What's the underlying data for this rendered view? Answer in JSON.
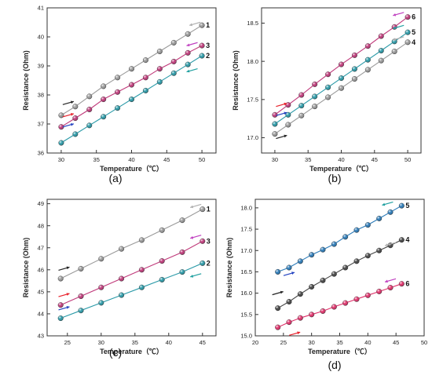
{
  "chart_data": [
    {
      "type": "line",
      "panel": "(a)",
      "xlabel": "Temperature（℃）",
      "ylabel": "Resistance (Ohm)",
      "xlim": [
        28,
        52
      ],
      "ylim": [
        36,
        41
      ],
      "xticks": [
        30,
        35,
        40,
        45,
        50
      ],
      "yticks": [
        36,
        37,
        38,
        39,
        40,
        41
      ],
      "series": [
        {
          "label": "1",
          "color": "#9a9a9a",
          "x": [
            30,
            32,
            34,
            36,
            38,
            40,
            42,
            44,
            46,
            48,
            50
          ],
          "y": [
            37.3,
            37.6,
            37.95,
            38.3,
            38.6,
            38.9,
            39.2,
            39.5,
            39.8,
            40.1,
            40.4
          ],
          "arrows": [
            {
              "x": 31,
              "y": 37.72,
              "dir": "up",
              "color": "#222"
            },
            {
              "x": 49,
              "y": 40.45,
              "dir": "down",
              "color": "#b0b0b0"
            }
          ]
        },
        {
          "label": "3",
          "color": "#c0397a",
          "x": [
            30,
            32,
            34,
            36,
            38,
            40,
            42,
            44,
            46,
            48,
            50
          ],
          "y": [
            36.9,
            37.2,
            37.5,
            37.85,
            38.1,
            38.35,
            38.6,
            38.9,
            39.15,
            39.45,
            39.7
          ],
          "arrows": [
            {
              "x": 31,
              "y": 37.3,
              "dir": "up",
              "color": "#e8202a"
            },
            {
              "x": 48.6,
              "y": 39.75,
              "dir": "down",
              "color": "#c040c0"
            }
          ]
        },
        {
          "label": "2",
          "color": "#2a9aa8",
          "x": [
            30,
            32,
            34,
            36,
            38,
            40,
            42,
            44,
            46,
            48,
            50
          ],
          "y": [
            36.35,
            36.65,
            36.95,
            37.25,
            37.55,
            37.85,
            38.15,
            38.45,
            38.75,
            39.05,
            39.35
          ],
          "arrows": [
            {
              "x": 31,
              "y": 36.95,
              "dir": "up",
              "color": "#2040c0"
            },
            {
              "x": 48.6,
              "y": 38.85,
              "dir": "down",
              "color": "#20a0a0"
            }
          ]
        }
      ]
    },
    {
      "type": "line",
      "panel": "(b)",
      "xlabel": "Temperature（℃）",
      "ylabel": "Resistance (Ohm)",
      "xlim": [
        28,
        52
      ],
      "ylim": [
        16.8,
        18.7
      ],
      "xticks": [
        30,
        35,
        40,
        45,
        50
      ],
      "yticks": [
        17.0,
        17.5,
        18.0,
        18.5
      ],
      "series": [
        {
          "label": "6",
          "color": "#c0397a",
          "x": [
            30,
            32,
            34,
            36,
            38,
            40,
            42,
            44,
            46,
            48,
            50
          ],
          "y": [
            17.3,
            17.43,
            17.56,
            17.7,
            17.83,
            17.96,
            18.08,
            18.2,
            18.33,
            18.45,
            18.58
          ],
          "arrows": [
            {
              "x": 31,
              "y": 17.43,
              "dir": "up",
              "color": "#e8202a"
            },
            {
              "x": 48.6,
              "y": 18.62,
              "dir": "down",
              "color": "#c040c0"
            }
          ]
        },
        {
          "label": "5",
          "color": "#2a9aa8",
          "x": [
            30,
            32,
            34,
            36,
            38,
            40,
            42,
            44,
            46,
            48,
            50
          ],
          "y": [
            17.18,
            17.3,
            17.42,
            17.54,
            17.66,
            17.78,
            17.9,
            18.02,
            18.14,
            18.26,
            18.38
          ],
          "arrows": [
            {
              "x": 31,
              "y": 17.31,
              "dir": "up",
              "color": "#2040c0"
            },
            {
              "x": 48.6,
              "y": 18.45,
              "dir": "down",
              "color": "#20a0a0"
            }
          ]
        },
        {
          "label": "4",
          "color": "#9a9a9a",
          "x": [
            30,
            32,
            34,
            36,
            38,
            40,
            42,
            44,
            46,
            48,
            50
          ],
          "y": [
            17.05,
            17.17,
            17.29,
            17.41,
            17.53,
            17.65,
            17.77,
            17.89,
            18.01,
            18.13,
            18.25
          ],
          "arrows": [
            {
              "x": 31,
              "y": 17.01,
              "dir": "up",
              "color": "#222"
            },
            {
              "x": 48.6,
              "y": 18.3,
              "dir": "down",
              "color": "#b0b0b0"
            }
          ]
        }
      ]
    },
    {
      "type": "line",
      "panel": "(c)",
      "xlabel": "Temperature（℃）",
      "ylabel": "Resistance (Ohm)",
      "xlim": [
        22,
        47
      ],
      "ylim": [
        43,
        49.2
      ],
      "xticks": [
        25,
        30,
        35,
        40,
        45
      ],
      "yticks": [
        43,
        44,
        45,
        46,
        47,
        48,
        49
      ],
      "series": [
        {
          "label": "1",
          "color": "#9a9a9a",
          "x": [
            24,
            27,
            30,
            33,
            36,
            39,
            42,
            45
          ],
          "y": [
            45.6,
            46.05,
            46.5,
            46.95,
            47.35,
            47.8,
            48.25,
            48.75
          ],
          "arrows": [
            {
              "x": 24.5,
              "y": 46.05,
              "dir": "up",
              "color": "#222"
            },
            {
              "x": 44,
              "y": 48.9,
              "dir": "down",
              "color": "#b0b0b0"
            }
          ]
        },
        {
          "label": "3",
          "color": "#c0397a",
          "x": [
            24,
            27,
            30,
            33,
            36,
            39,
            42,
            45
          ],
          "y": [
            44.4,
            44.8,
            45.2,
            45.6,
            46.0,
            46.4,
            46.8,
            47.3
          ],
          "arrows": [
            {
              "x": 24.5,
              "y": 44.85,
              "dir": "up",
              "color": "#e8202a"
            },
            {
              "x": 44,
              "y": 47.5,
              "dir": "down",
              "color": "#c040c0"
            }
          ]
        },
        {
          "label": "2",
          "color": "#2a9aa8",
          "x": [
            24,
            27,
            30,
            33,
            36,
            39,
            42,
            45
          ],
          "y": [
            43.8,
            44.15,
            44.5,
            44.85,
            45.2,
            45.55,
            45.9,
            46.3
          ],
          "arrows": [
            {
              "x": 24.5,
              "y": 44.25,
              "dir": "up",
              "color": "#2040c0"
            },
            {
              "x": 44,
              "y": 45.75,
              "dir": "down",
              "color": "#20a0a0"
            }
          ]
        }
      ]
    },
    {
      "type": "line",
      "panel": "(d)",
      "xlabel": "Temperature（℃）",
      "ylabel": "Resistance (Ohm)",
      "xlim": [
        20,
        50
      ],
      "ylim": [
        15.0,
        18.2
      ],
      "xticks": [
        20,
        25,
        30,
        35,
        40,
        45,
        50
      ],
      "yticks": [
        15.0,
        15.5,
        16.0,
        16.5,
        17.0,
        17.5,
        18.0
      ],
      "series": [
        {
          "label": "5",
          "color": "#2a7ab8",
          "x": [
            24,
            26,
            28,
            30,
            32,
            34,
            36,
            38,
            40,
            42,
            44,
            46
          ],
          "y": [
            16.5,
            16.6,
            16.75,
            16.9,
            17.02,
            17.15,
            17.32,
            17.48,
            17.6,
            17.75,
            17.9,
            18.05
          ],
          "arrows": [
            {
              "x": 26,
              "y": 16.45,
              "dir": "up",
              "color": "#2040c0"
            },
            {
              "x": 43.5,
              "y": 18.1,
              "dir": "down",
              "color": "#20a0a0"
            }
          ]
        },
        {
          "label": "4",
          "color": "#444444",
          "x": [
            24,
            26,
            28,
            30,
            32,
            34,
            36,
            38,
            40,
            42,
            44,
            46
          ],
          "y": [
            15.65,
            15.8,
            15.98,
            16.15,
            16.3,
            16.45,
            16.6,
            16.75,
            16.88,
            17.0,
            17.12,
            17.25
          ],
          "arrows": [
            {
              "x": 24,
              "y": 16.0,
              "dir": "up",
              "color": "#222"
            },
            {
              "x": 44,
              "y": 17.15,
              "dir": "down",
              "color": "#b0b0b0"
            }
          ]
        },
        {
          "label": "6",
          "color": "#e0306a",
          "x": [
            24,
            26,
            28,
            30,
            32,
            34,
            36,
            38,
            40,
            42,
            44,
            46
          ],
          "y": [
            15.2,
            15.32,
            15.42,
            15.5,
            15.58,
            15.68,
            15.77,
            15.86,
            15.95,
            16.04,
            16.13,
            16.22
          ],
          "arrows": [
            {
              "x": 27,
              "y": 15.05,
              "dir": "up",
              "color": "#e8202a"
            },
            {
              "x": 44,
              "y": 16.3,
              "dir": "down",
              "color": "#c040c0"
            }
          ]
        }
      ]
    }
  ]
}
